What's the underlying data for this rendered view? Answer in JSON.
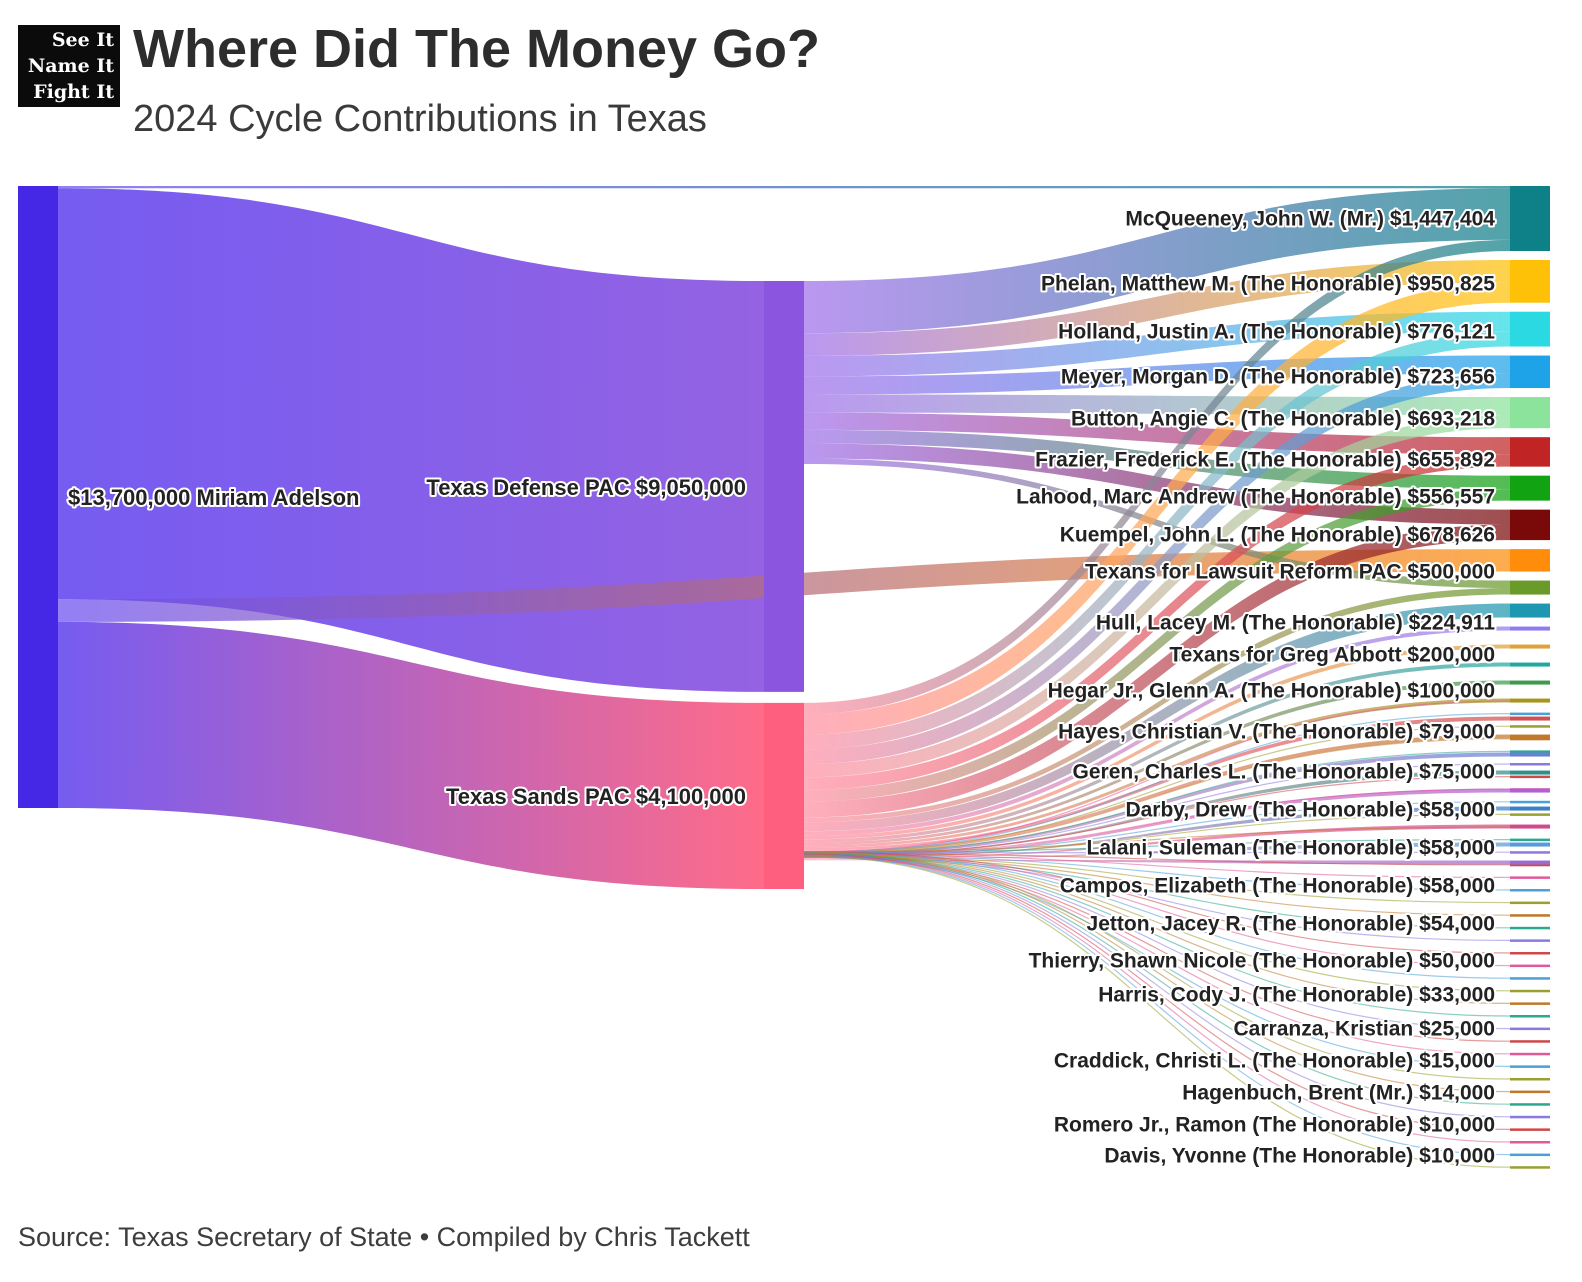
{
  "logo": {
    "line1": "See It",
    "line2": "Name It",
    "line3": "Fight It"
  },
  "header": {
    "title": "Where Did The Money Go?",
    "subtitle": "2024 Cycle Contributions in Texas"
  },
  "footer": {
    "source": "Source: Texas Secretary of State • Compiled by Chris Tackett"
  },
  "colors": {
    "source_node": "#4527e6",
    "defense_node": "#8b55e0",
    "sands_node": "#ff5f7e",
    "source_flow": "#6a4ef0",
    "defense_flow": "#a070ea",
    "sands_flow": "#ff8fa3"
  },
  "chart_data": {
    "type": "sankey",
    "nodes": [
      {
        "id": "adelson",
        "label": "Miriam Adelson",
        "value_label": "$13,700,000",
        "value": 13700000,
        "color": "#4527e6",
        "column": 0
      },
      {
        "id": "defense",
        "label": "Texas Defense PAC",
        "value_label": "$9,050,000",
        "value": 9050000,
        "color": "#8b55e0",
        "column": 1
      },
      {
        "id": "sands",
        "label": "Texas Sands PAC",
        "value_label": "$4,100,000",
        "value": 4100000,
        "color": "#ff5f7e",
        "column": 1
      },
      {
        "id": "mcqueeney",
        "label": "McQueeney, John W. (Mr.)",
        "value_label": "$1,447,404",
        "value": 1447404,
        "color": "#0e8088",
        "column": 2
      },
      {
        "id": "phelan",
        "label": "Phelan, Matthew M. (The Honorable)",
        "value_label": "$950,825",
        "value": 950825,
        "color": "#ffc107",
        "column": 2
      },
      {
        "id": "holland",
        "label": "Holland, Justin A. (The Honorable)",
        "value_label": "$776,121",
        "value": 776121,
        "color": "#2bd9e3",
        "column": 2
      },
      {
        "id": "meyer",
        "label": "Meyer, Morgan D. (The Honorable)",
        "value_label": "$723,656",
        "value": 723656,
        "color": "#1ea3e8",
        "column": 2
      },
      {
        "id": "button",
        "label": "Button, Angie C. (The Honorable)",
        "value_label": "$693,218",
        "value": 693218,
        "color": "#8ce49c",
        "column": 2
      },
      {
        "id": "frazier",
        "label": "Frazier, Frederick E. (The Honorable)",
        "value_label": "$655,892",
        "value": 655892,
        "color": "#c02424",
        "column": 2
      },
      {
        "id": "lahood",
        "label": "Lahood, Marc Andrew (The Honorable)",
        "value_label": "$556,557",
        "value": 556557,
        "color": "#12a312",
        "column": 2
      },
      {
        "id": "kuempel",
        "label": "Kuempel, John L. (The Honorable)",
        "value_label": "$678,626",
        "value": 678626,
        "color": "#7a0a0a",
        "column": 2
      },
      {
        "id": "tlr",
        "label": "Texans for Lawsuit Reform PAC",
        "value_label": "$500,000",
        "value": 500000,
        "color": "#ff8c0a",
        "column": 2
      },
      {
        "id": "hull",
        "label": "Hull, Lacey M. (The Honorable)",
        "value_label": "$224,911",
        "value": 224911,
        "color": "#6a9b2a",
        "column": 2
      },
      {
        "id": "abbott",
        "label": "Texans for Greg Abbott",
        "value_label": "$200,000",
        "value": 200000,
        "color": "#1d98b0",
        "column": 2
      },
      {
        "id": "hegar",
        "label": "Hegar Jr., Glenn A. (The Honorable)",
        "value_label": "$100,000",
        "value": 100000,
        "color": "#8f7cf0",
        "column": 2
      },
      {
        "id": "hayes",
        "label": "Hayes, Christian V. (The Honorable)",
        "value_label": "$79,000",
        "value": 79000,
        "color": "#e0a13a",
        "column": 2
      },
      {
        "id": "geren",
        "label": "Geren, Charles L. (The Honorable)",
        "value_label": "$75,000",
        "value": 75000,
        "color": "#21a8a0",
        "column": 2
      },
      {
        "id": "darby",
        "label": "Darby, Drew (The Honorable)",
        "value_label": "$58,000",
        "value": 58000,
        "color": "#3e9a4c",
        "column": 2
      },
      {
        "id": "lalani",
        "label": "Lalani, Suleman (The Honorable)",
        "value_label": "$58,000",
        "value": 58000,
        "color": "#a8951e",
        "column": 2
      },
      {
        "id": "campos",
        "label": "Campos, Elizabeth (The Honorable)",
        "value_label": "$58,000",
        "value": 58000,
        "color": "#d45050",
        "column": 2
      },
      {
        "id": "jetton",
        "label": "Jetton, Jacey R. (The Honorable)",
        "value_label": "$54,000",
        "value": 54000,
        "color": "#c0782a",
        "column": 2
      },
      {
        "id": "thierry",
        "label": "Thierry, Shawn Nicole (The Honorable)",
        "value_label": "$50,000",
        "value": 50000,
        "color": "#6a7fd8",
        "column": 2
      },
      {
        "id": "harris",
        "label": "Harris, Cody J. (The Honorable)",
        "value_label": "$33,000",
        "value": 33000,
        "color": "#2f8f8a",
        "column": 2
      },
      {
        "id": "carranza",
        "label": "Carranza, Kristian",
        "value_label": "$25,000",
        "value": 25000,
        "color": "#b060d0",
        "column": 2
      },
      {
        "id": "craddick",
        "label": "Craddick, Christi L. (The Honorable)",
        "value_label": "$15,000",
        "value": 15000,
        "color": "#3a7fc8",
        "column": 2
      },
      {
        "id": "hagenbuch",
        "label": "Hagenbuch, Brent (Mr.)",
        "value_label": "$14,000",
        "value": 14000,
        "color": "#d04a8a",
        "column": 2
      },
      {
        "id": "romero",
        "label": "Romero Jr., Ramon (The Honorable)",
        "value_label": "$10,000",
        "value": 10000,
        "color": "#5a9ad8",
        "column": 2
      },
      {
        "id": "davis",
        "label": "Davis, Yvonne (The Honorable)",
        "value_label": "$10,000",
        "value": 10000,
        "color": "#9a6ad0",
        "column": 2
      }
    ],
    "links": [
      {
        "source": "adelson",
        "target": "mcqueeney",
        "value": 50000
      },
      {
        "source": "adelson",
        "target": "defense",
        "value": 9050000
      },
      {
        "source": "adelson",
        "target": "tlr",
        "value": 500000
      },
      {
        "source": "adelson",
        "target": "sands",
        "value": 4100000
      },
      {
        "source": "defense",
        "target": "mcqueeney",
        "value": 1150000
      },
      {
        "source": "defense",
        "target": "phelan",
        "value": 500000
      },
      {
        "source": "defense",
        "target": "holland",
        "value": 450000
      },
      {
        "source": "defense",
        "target": "meyer",
        "value": 400000
      },
      {
        "source": "defense",
        "target": "button",
        "value": 400000
      },
      {
        "source": "defense",
        "target": "frazier",
        "value": 380000
      },
      {
        "source": "defense",
        "target": "lahood",
        "value": 300000
      },
      {
        "source": "defense",
        "target": "kuempel",
        "value": 330000
      },
      {
        "source": "defense",
        "target": "hull",
        "value": 120000
      },
      {
        "source": "sands",
        "target": "mcqueeney",
        "value": 247404
      },
      {
        "source": "sands",
        "target": "phelan",
        "value": 450825
      },
      {
        "source": "sands",
        "target": "holland",
        "value": 326121
      },
      {
        "source": "sands",
        "target": "meyer",
        "value": 323656
      },
      {
        "source": "sands",
        "target": "button",
        "value": 293218
      },
      {
        "source": "sands",
        "target": "frazier",
        "value": 275892
      },
      {
        "source": "sands",
        "target": "lahood",
        "value": 256557
      },
      {
        "source": "sands",
        "target": "kuempel",
        "value": 348626
      },
      {
        "source": "sands",
        "target": "hull",
        "value": 104911
      },
      {
        "source": "sands",
        "target": "abbott",
        "value": 200000
      },
      {
        "source": "sands",
        "target": "hegar",
        "value": 100000
      },
      {
        "source": "sands",
        "target": "hayes",
        "value": 79000
      },
      {
        "source": "sands",
        "target": "geren",
        "value": 75000
      },
      {
        "source": "sands",
        "target": "darby",
        "value": 58000
      },
      {
        "source": "sands",
        "target": "lalani",
        "value": 58000
      },
      {
        "source": "sands",
        "target": "campos",
        "value": 58000
      },
      {
        "source": "sands",
        "target": "jetton",
        "value": 54000
      },
      {
        "source": "sands",
        "target": "thierry",
        "value": 50000
      },
      {
        "source": "sands",
        "target": "harris",
        "value": 33000
      },
      {
        "source": "sands",
        "target": "carranza",
        "value": 25000
      },
      {
        "source": "sands",
        "target": "craddick",
        "value": 15000
      },
      {
        "source": "sands",
        "target": "hagenbuch",
        "value": 14000
      },
      {
        "source": "sands",
        "target": "romero",
        "value": 10000
      },
      {
        "source": "sands",
        "target": "davis",
        "value": 10000
      }
    ],
    "unlabeled_small_recipients": 38
  }
}
